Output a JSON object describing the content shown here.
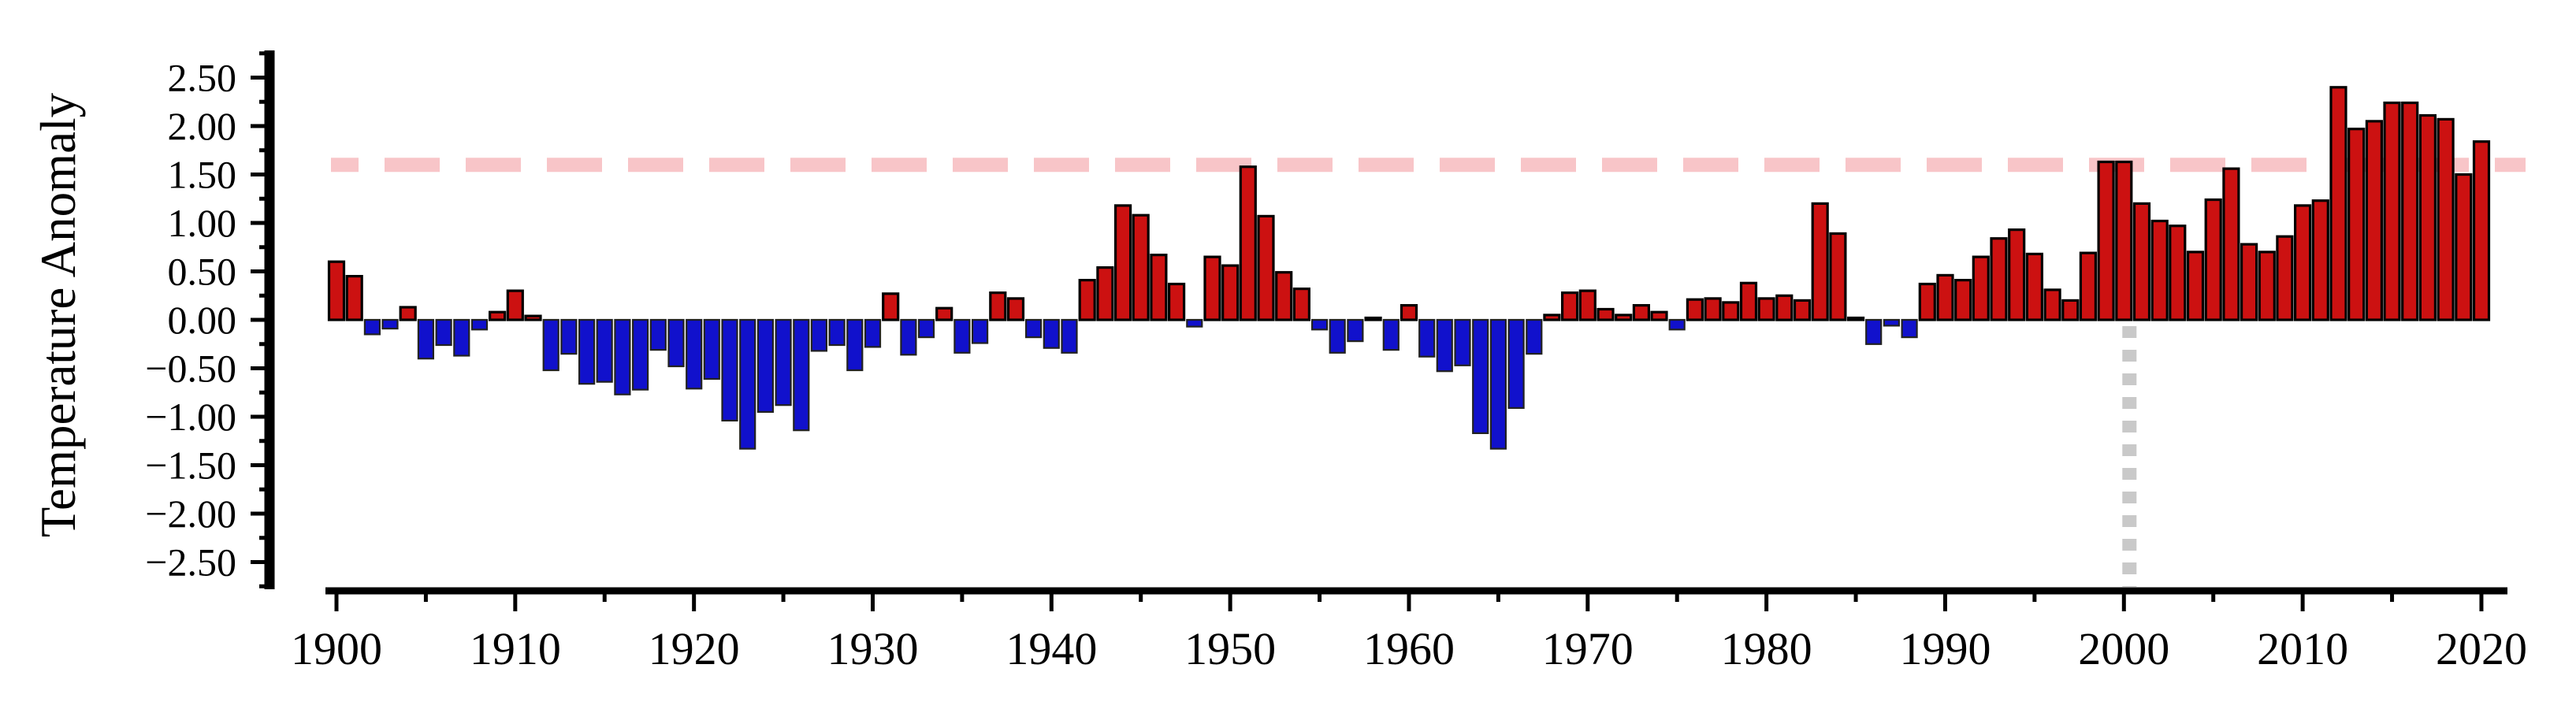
{
  "figure": {
    "background": "#ffffff",
    "y_axis_title": "Temperature Anomaly"
  },
  "chart_data": {
    "type": "bar",
    "title": "",
    "xlabel": "",
    "ylabel": "Temperature Anomaly",
    "grid": false,
    "legend": null,
    "xlim": [
      1899.0,
      2021.8
    ],
    "ylim": [
      -2.77,
      2.8
    ],
    "x": [
      1900,
      1901,
      1902,
      1903,
      1904,
      1905,
      1906,
      1907,
      1908,
      1909,
      1910,
      1911,
      1912,
      1913,
      1914,
      1915,
      1916,
      1917,
      1918,
      1919,
      1920,
      1921,
      1922,
      1923,
      1924,
      1925,
      1926,
      1927,
      1928,
      1929,
      1930,
      1931,
      1932,
      1933,
      1934,
      1935,
      1936,
      1937,
      1938,
      1939,
      1940,
      1941,
      1942,
      1943,
      1944,
      1945,
      1946,
      1947,
      1948,
      1949,
      1950,
      1951,
      1952,
      1953,
      1954,
      1955,
      1956,
      1957,
      1958,
      1959,
      1960,
      1961,
      1962,
      1963,
      1964,
      1965,
      1966,
      1967,
      1968,
      1969,
      1970,
      1971,
      1972,
      1973,
      1974,
      1975,
      1976,
      1977,
      1978,
      1979,
      1980,
      1981,
      1982,
      1983,
      1984,
      1985,
      1986,
      1987,
      1988,
      1989,
      1990,
      1991,
      1992,
      1993,
      1994,
      1995,
      1996,
      1997,
      1998,
      1999,
      2000,
      2001,
      2002,
      2003,
      2004,
      2005,
      2006,
      2007,
      2008,
      2009,
      2010,
      2011,
      2012,
      2013,
      2014,
      2015,
      2016,
      2017,
      2018,
      2019,
      2020
    ],
    "values": [
      0.6,
      0.45,
      -0.15,
      -0.09,
      0.13,
      -0.4,
      -0.26,
      -0.37,
      -0.1,
      0.08,
      0.3,
      0.04,
      -0.52,
      -0.35,
      -0.66,
      -0.64,
      -0.77,
      -0.72,
      -0.31,
      -0.48,
      -0.71,
      -0.61,
      -1.04,
      -1.33,
      -0.95,
      -0.88,
      -1.14,
      -0.32,
      -0.26,
      -0.52,
      -0.28,
      0.27,
      -0.36,
      -0.18,
      0.12,
      -0.34,
      -0.24,
      0.28,
      0.22,
      -0.18,
      -0.29,
      -0.34,
      0.41,
      0.54,
      1.18,
      1.08,
      0.67,
      0.37,
      -0.07,
      0.65,
      0.56,
      1.58,
      1.07,
      0.49,
      0.32,
      -0.1,
      -0.34,
      -0.22,
      0.02,
      -0.31,
      0.15,
      -0.38,
      -0.53,
      -0.47,
      -1.17,
      -1.33,
      -0.91,
      -0.35,
      0.05,
      0.28,
      0.3,
      0.11,
      0.05,
      0.15,
      0.08,
      -0.1,
      0.21,
      0.22,
      0.18,
      0.38,
      0.22,
      0.25,
      0.2,
      1.2,
      0.89,
      0.02,
      -0.25,
      -0.06,
      -0.18,
      0.37,
      0.46,
      0.41,
      0.65,
      0.84,
      0.93,
      0.68,
      0.31,
      0.2,
      0.69,
      1.63,
      1.63,
      1.2,
      1.02,
      0.97,
      0.7,
      1.24,
      1.56,
      0.78,
      0.7,
      0.86,
      1.18,
      1.23,
      2.4,
      1.97,
      2.05,
      2.24,
      2.24,
      2.11,
      2.07,
      1.5,
      1.84
    ],
    "y_ticks": [
      {
        "v": 2.5,
        "label": "2.50"
      },
      {
        "v": 2.0,
        "label": "2.00"
      },
      {
        "v": 1.5,
        "label": "1.50"
      },
      {
        "v": 1.0,
        "label": "1.00"
      },
      {
        "v": 0.5,
        "label": "0.50"
      },
      {
        "v": 0.0,
        "label": "0.00"
      },
      {
        "v": -0.5,
        "label": "-0.50"
      },
      {
        "v": -1.0,
        "label": "-1.00"
      },
      {
        "v": -1.5,
        "label": "-1.50"
      },
      {
        "v": -2.0,
        "label": "-2.00"
      },
      {
        "v": -2.5,
        "label": "-2.50"
      }
    ],
    "y_minor_tick_step": 0.25,
    "y_minor_tick_range": [
      -2.75,
      2.75
    ],
    "x_ticks": [
      {
        "v": 1900,
        "label": "1900"
      },
      {
        "v": 1910,
        "label": "1910"
      },
      {
        "v": 1920,
        "label": "1920"
      },
      {
        "v": 1930,
        "label": "1930"
      },
      {
        "v": 1940,
        "label": "1940"
      },
      {
        "v": 1950,
        "label": "1950"
      },
      {
        "v": 1960,
        "label": "1960"
      },
      {
        "v": 1970,
        "label": "1970"
      },
      {
        "v": 1980,
        "label": "1980"
      },
      {
        "v": 1990,
        "label": "1990"
      },
      {
        "v": 2000,
        "label": "2000"
      },
      {
        "v": 2010,
        "label": "2010"
      },
      {
        "v": 2020,
        "label": "2020"
      }
    ],
    "x_minor_tick_step": 5,
    "annotations": {
      "threshold_line": {
        "y": 1.6,
        "style": "dashed",
        "color": "#F8C5C8",
        "behind_bars": true
      },
      "year_marker_line": {
        "x": 2000,
        "style": "dotted",
        "color": "#C9C9C9",
        "from_value": 0,
        "to": "x-axis"
      }
    },
    "colors": {
      "positive_bar": "#CC1111",
      "negative_bar": "#1111CC",
      "positive_bar_edge": "#000000",
      "negative_bar_edge": "#222222",
      "axis": "#000000",
      "text": "#000000"
    }
  }
}
